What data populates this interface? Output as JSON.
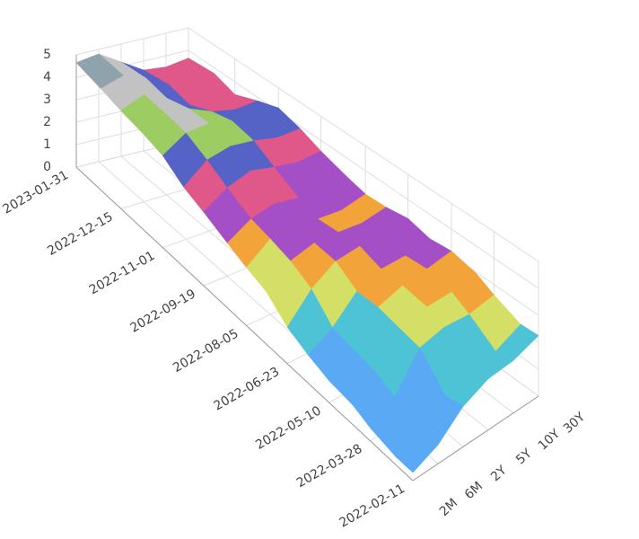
{
  "chart_data": {
    "type": "surface",
    "x": [
      "2022-02-11",
      "2022-03-01",
      "2022-03-28",
      "2022-04-15",
      "2022-05-10",
      "2022-06-01",
      "2022-06-23",
      "2022-07-15",
      "2022-08-05",
      "2022-08-25",
      "2022-09-19",
      "2022-10-10",
      "2022-11-01",
      "2022-11-22",
      "2022-12-15",
      "2023-01-05",
      "2023-01-31"
    ],
    "y": [
      "2M",
      "6M",
      "2Y",
      "5Y",
      "10Y",
      "30Y"
    ],
    "z": [
      [
        0.3,
        0.7,
        1.5,
        1.9,
        1.95,
        2.25
      ],
      [
        0.3,
        0.7,
        1.35,
        1.65,
        1.8,
        2.2
      ],
      [
        0.5,
        1.05,
        2.35,
        2.55,
        2.45,
        2.6
      ],
      [
        0.75,
        1.35,
        2.45,
        2.8,
        2.8,
        2.95
      ],
      [
        0.85,
        1.5,
        2.6,
        2.9,
        3.0,
        3.15
      ],
      [
        1.1,
        1.65,
        2.55,
        2.9,
        2.9,
        3.05
      ],
      [
        1.45,
        2.45,
        3.05,
        3.15,
        3.1,
        3.25
      ],
      [
        2.1,
        2.85,
        3.1,
        3.05,
        2.95,
        3.1
      ],
      [
        2.35,
        3.05,
        3.05,
        2.95,
        2.85,
        3.05
      ],
      [
        2.65,
        3.2,
        3.4,
        3.2,
        3.05,
        3.25
      ],
      [
        3.05,
        3.65,
        3.95,
        3.7,
        3.5,
        3.55
      ],
      [
        3.35,
        4.1,
        4.3,
        4.15,
        3.9,
        3.9
      ],
      [
        3.9,
        4.5,
        4.55,
        4.3,
        4.05,
        4.15
      ],
      [
        4.1,
        4.6,
        4.5,
        4.05,
        3.8,
        3.85
      ],
      [
        4.25,
        4.65,
        4.2,
        3.6,
        3.45,
        3.45
      ],
      [
        4.45,
        4.75,
        4.35,
        3.8,
        3.7,
        3.75
      ],
      [
        4.65,
        4.8,
        4.2,
        3.6,
        3.5,
        3.65
      ]
    ],
    "xlim": [
      "2022-02-11",
      "2023-01-31"
    ],
    "xticks": [
      "2022-02-11",
      "2022-03-28",
      "2022-05-10",
      "2022-06-23",
      "2022-08-05",
      "2022-09-19",
      "2022-11-01",
      "2022-12-15",
      "2023-01-31"
    ],
    "zlim": [
      0,
      5
    ],
    "zticks": [
      0,
      1,
      2,
      3,
      4,
      5
    ],
    "grid": true,
    "colorscale": [
      [
        0,
        "#5aa9f5"
      ],
      [
        1.5,
        "#4fc3d6"
      ],
      [
        2.2,
        "#d4e065"
      ],
      [
        2.7,
        "#f2a33a"
      ],
      [
        3.0,
        "#a54fc7"
      ],
      [
        3.4,
        "#e0578a"
      ],
      [
        3.9,
        "#5563c7"
      ],
      [
        4.2,
        "#9ccc62"
      ],
      [
        4.45,
        "#c2c2c2"
      ],
      [
        4.65,
        "#8fa3ad"
      ]
    ]
  }
}
